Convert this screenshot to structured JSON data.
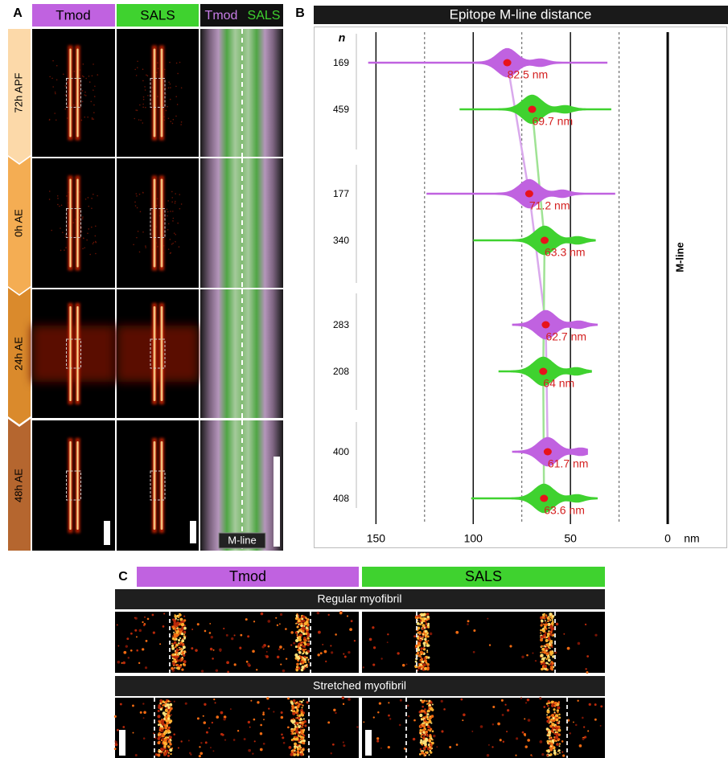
{
  "panel_labels": [
    "A",
    "B",
    "C"
  ],
  "panel_a": {
    "columns": [
      "Tmod",
      "SALS"
    ],
    "merge_labels": [
      "Tmod",
      "SALS"
    ],
    "stages": [
      "72h APF",
      "0h AE",
      "24h AE",
      "48h AE"
    ],
    "mline_label": "M-line"
  },
  "chart_data": {
    "type": "violin",
    "title": "Epitope M-line distance",
    "n_header": "n",
    "xlabel": "nm",
    "reference_label": "M-line",
    "xlim": [
      182,
      -31
    ],
    "xticks": [
      150,
      100,
      50,
      0
    ],
    "xminor": [
      125,
      75,
      25
    ],
    "grid": true,
    "series": [
      {
        "name": "Tmod",
        "color": "#c062e0",
        "line_color": "#d9a9ec",
        "values": [
          82.5,
          71.2,
          62.7,
          61.7
        ],
        "value_labels": [
          "82.5 nm",
          "71.2 nm",
          "62.7 nm",
          "61.7 nm"
        ],
        "n": [
          169,
          177,
          283,
          400
        ],
        "mins": [
          31,
          27,
          36,
          41
        ],
        "maxs": [
          154,
          124,
          80,
          80
        ]
      },
      {
        "name": "SALS",
        "color": "#3fd22f",
        "line_color": "#9fe394",
        "values": [
          69.7,
          63.3,
          64,
          63.6
        ],
        "value_labels": [
          "69.7 nm",
          "63.3 nm",
          "64 nm",
          "63.6 nm"
        ],
        "n": [
          459,
          340,
          208,
          408
        ],
        "mins": [
          29,
          37,
          39,
          36
        ],
        "maxs": [
          107,
          100,
          87,
          101
        ]
      }
    ],
    "mean_color": "#e8131b",
    "label_color": "#d42020"
  },
  "panel_c": {
    "columns": [
      "Tmod",
      "SALS"
    ],
    "rows": [
      "Regular myofibril",
      "Stretched myofibril"
    ]
  }
}
